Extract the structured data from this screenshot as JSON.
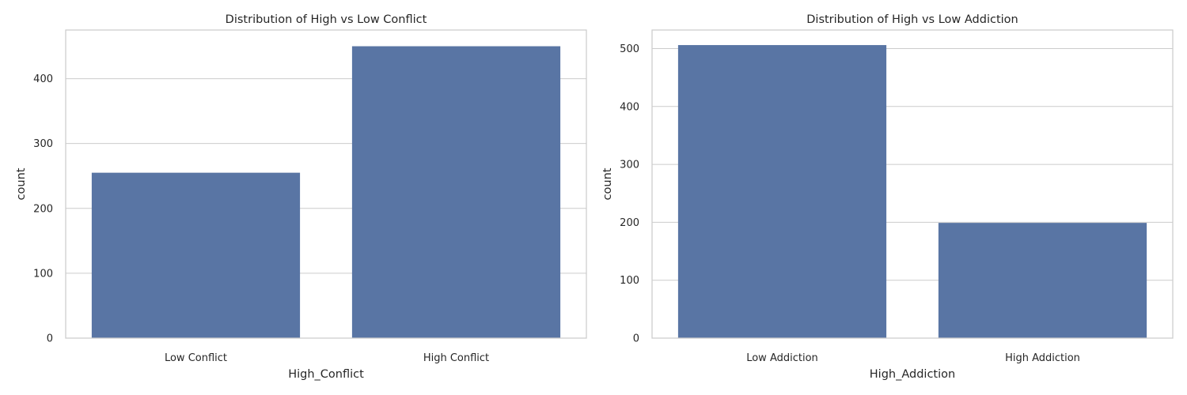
{
  "figure": {
    "background": "#ffffff",
    "bar_color": "#5975a4",
    "grid_color": "#cccccc",
    "text_color": "#262626"
  },
  "chart_data": [
    {
      "type": "bar",
      "title": "Distribution of High vs Low Conflict",
      "xlabel": "High_Conflict",
      "ylabel": "count",
      "categories": [
        "Low Conflict",
        "High Conflict"
      ],
      "values": [
        255,
        450
      ],
      "ylim": [
        0,
        475
      ],
      "yticks": [
        0,
        100,
        200,
        300,
        400
      ],
      "grid": true,
      "color": "#5975a4"
    },
    {
      "type": "bar",
      "title": "Distribution of High vs Low Addiction",
      "xlabel": "High_Addiction",
      "ylabel": "count",
      "categories": [
        "Low Addiction",
        "High Addiction"
      ],
      "values": [
        506,
        199
      ],
      "ylim": [
        0,
        532
      ],
      "yticks": [
        0,
        100,
        200,
        300,
        400,
        500
      ],
      "grid": true,
      "color": "#5975a4"
    }
  ]
}
